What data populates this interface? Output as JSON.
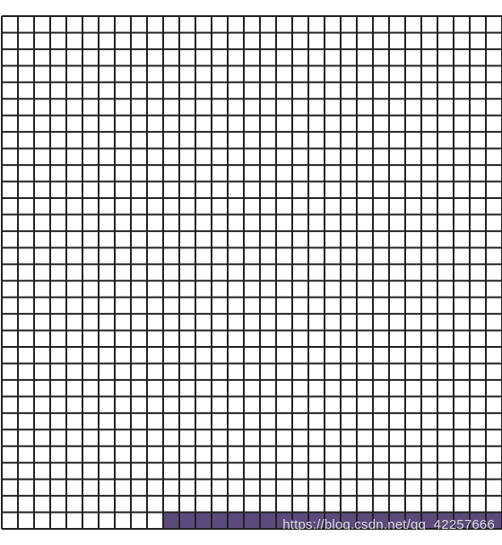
{
  "board": {
    "columns": 31,
    "rows": 31,
    "line_color": "#222222",
    "background_color": "#ffffff",
    "filled_color": "#5b4a7c",
    "filled_cells": {
      "row": 30,
      "from_column": 10,
      "to_column": 30
    }
  },
  "watermark": {
    "text": "https://blog.csdn.net/qq_42257666"
  }
}
